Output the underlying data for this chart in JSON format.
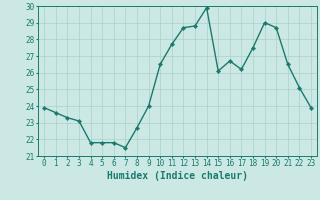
{
  "x": [
    0,
    1,
    2,
    3,
    4,
    5,
    6,
    7,
    8,
    9,
    10,
    11,
    12,
    13,
    14,
    15,
    16,
    17,
    18,
    19,
    20,
    21,
    22,
    23
  ],
  "y": [
    23.9,
    23.6,
    23.3,
    23.1,
    21.8,
    21.8,
    21.8,
    21.5,
    22.7,
    24.0,
    26.5,
    27.7,
    28.7,
    28.8,
    29.9,
    26.1,
    26.7,
    26.2,
    27.5,
    29.0,
    28.7,
    26.5,
    25.1,
    23.9
  ],
  "line_color": "#1a7a6e",
  "marker_color": "#1a7a6e",
  "bg_color": "#cce8e4",
  "grid_color": "#aad0cc",
  "xlabel": "Humidex (Indice chaleur)",
  "ylim": [
    21,
    30
  ],
  "xlim": [
    -0.5,
    23.5
  ],
  "yticks": [
    21,
    22,
    23,
    24,
    25,
    26,
    27,
    28,
    29,
    30
  ],
  "xticks": [
    0,
    1,
    2,
    3,
    4,
    5,
    6,
    7,
    8,
    9,
    10,
    11,
    12,
    13,
    14,
    15,
    16,
    17,
    18,
    19,
    20,
    21,
    22,
    23
  ],
  "tick_labelsize": 5.5,
  "xlabel_fontsize": 7,
  "marker_size": 2.2,
  "linewidth": 1.0
}
